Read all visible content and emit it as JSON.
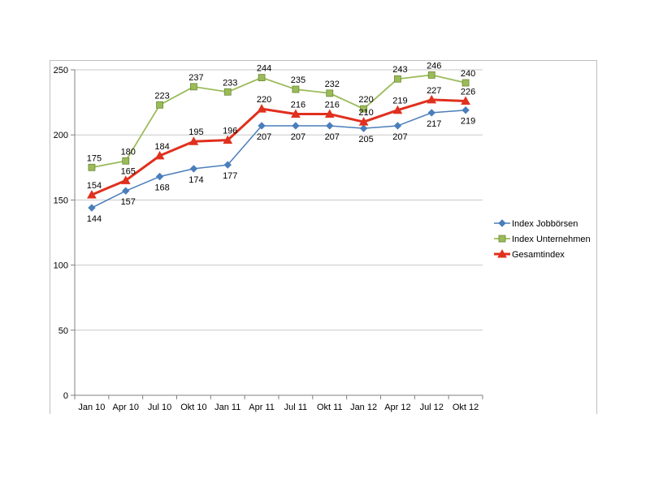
{
  "chart_data": {
    "type": "line",
    "categories": [
      "Jan 10",
      "Apr 10",
      "Jul 10",
      "Okt 10",
      "Jan 11",
      "Apr 11",
      "Jul 11",
      "Okt 11",
      "Jan 12",
      "Apr 12",
      "Jul 12",
      "Okt 12"
    ],
    "ylim": [
      0,
      250
    ],
    "yticks": [
      0,
      50,
      100,
      150,
      200,
      250
    ],
    "grid": true,
    "legend_position": "right",
    "title": "",
    "xlabel": "",
    "ylabel": "",
    "series": [
      {
        "name": "Index Jobbörsen",
        "color": "#4a7ebb",
        "marker": "diamond",
        "values": [
          144,
          157,
          168,
          174,
          177,
          207,
          207,
          207,
          205,
          207,
          217,
          219
        ],
        "label_position": "below"
      },
      {
        "name": "Index Unternehmen",
        "color": "#9bbb59",
        "marker": "square",
        "values": [
          175,
          180,
          223,
          237,
          233,
          244,
          235,
          232,
          220,
          243,
          246,
          240
        ],
        "label_position": "above"
      },
      {
        "name": "Gesamtindex",
        "color": "#e0301e",
        "marker": "triangle",
        "values": [
          154,
          165,
          184,
          195,
          196,
          220,
          216,
          216,
          210,
          219,
          227,
          226
        ],
        "label_position": "above"
      }
    ]
  }
}
